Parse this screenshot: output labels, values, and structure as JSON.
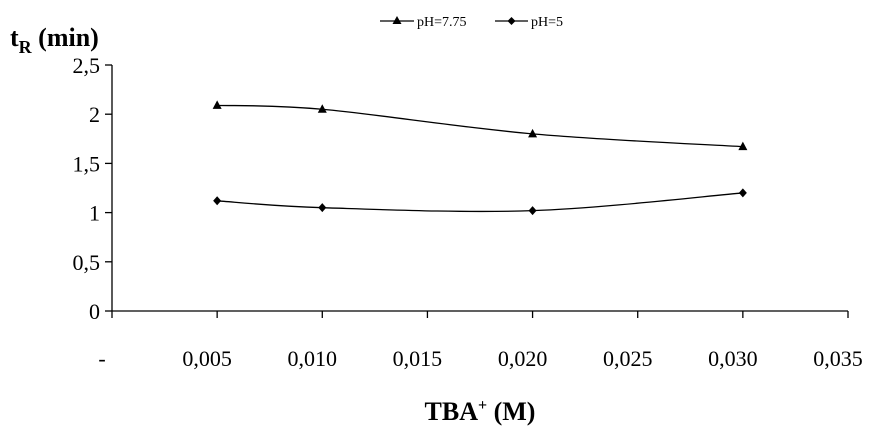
{
  "chart_data": {
    "type": "line",
    "ylabel_main": "t",
    "ylabel_sub": "R",
    "ylabel_unit": " (min)",
    "xlabel_main": "TBA",
    "xlabel_sup": "+",
    "xlabel_unit": " (M)",
    "x_tick_labels": [
      "-",
      "0,005",
      "0,010",
      "0,015",
      "0,020",
      "0,025",
      "0,030",
      "0,035"
    ],
    "y_tick_labels": [
      "0",
      "0,5",
      "1",
      "1,5",
      "2",
      "2,5"
    ],
    "y_ticks": [
      0,
      0.5,
      1,
      1.5,
      2,
      2.5
    ],
    "xlim": [
      0,
      0.035
    ],
    "ylim": [
      0,
      2.5
    ],
    "grid": false,
    "legend_position": "top-center",
    "series": [
      {
        "name": "pH=7.75",
        "marker": "triangle",
        "x": [
          0.005,
          0.01,
          0.02,
          0.03
        ],
        "y": [
          2.09,
          2.05,
          1.8,
          1.67
        ]
      },
      {
        "name": "pH=5",
        "marker": "diamond",
        "x": [
          0.005,
          0.01,
          0.02,
          0.03
        ],
        "y": [
          1.12,
          1.05,
          1.02,
          1.2
        ]
      }
    ]
  }
}
